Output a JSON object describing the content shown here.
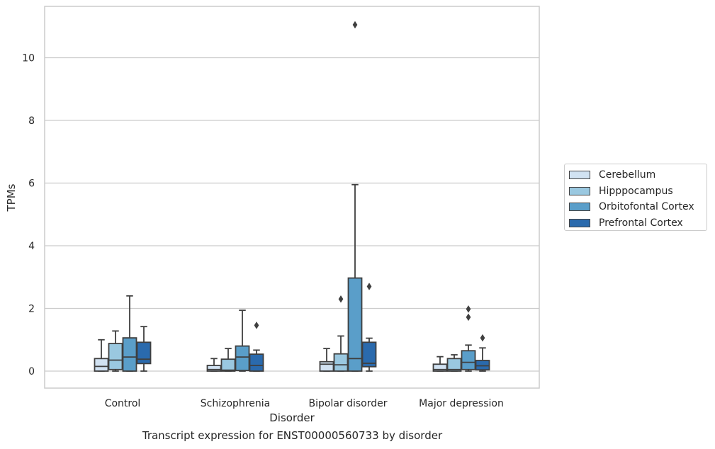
{
  "caption": "Transcript expression for ENST00000560733 by disorder",
  "chart_data": {
    "type": "box",
    "xlabel": "Disorder",
    "ylabel": "TPMs",
    "ylim": [
      -0.52,
      11.65
    ],
    "yticks": [
      0,
      2,
      4,
      6,
      8,
      10
    ],
    "grid": true,
    "legend_position": "right",
    "categories": [
      "Control",
      "Schizophrenia",
      "Bipolar disorder",
      "Major depression"
    ],
    "series": [
      {
        "name": "Cerebellum",
        "color": "#d1e2f2",
        "boxes": [
          {
            "whisker_low": 0,
            "q1": 0,
            "median": 0.15,
            "q3": 0.4,
            "whisker_high": 1.0,
            "outliers": []
          },
          {
            "whisker_low": 0,
            "q1": 0,
            "median": 0.05,
            "q3": 0.18,
            "whisker_high": 0.4,
            "outliers": []
          },
          {
            "whisker_low": 0,
            "q1": 0,
            "median": 0.22,
            "q3": 0.3,
            "whisker_high": 0.72,
            "outliers": []
          },
          {
            "whisker_low": 0,
            "q1": 0,
            "median": 0.05,
            "q3": 0.22,
            "whisker_high": 0.46,
            "outliers": []
          }
        ]
      },
      {
        "name": "Hipppocampus",
        "color": "#9ac8e0",
        "boxes": [
          {
            "whisker_low": 0,
            "q1": 0.05,
            "median": 0.35,
            "q3": 0.88,
            "whisker_high": 1.28,
            "outliers": []
          },
          {
            "whisker_low": 0,
            "q1": 0,
            "median": 0.03,
            "q3": 0.38,
            "whisker_high": 0.72,
            "outliers": []
          },
          {
            "whisker_low": 0,
            "q1": 0,
            "median": 0.2,
            "q3": 0.55,
            "whisker_high": 1.12,
            "outliers": [
              2.3
            ]
          },
          {
            "whisker_low": 0,
            "q1": 0,
            "median": 0.05,
            "q3": 0.4,
            "whisker_high": 0.52,
            "outliers": []
          }
        ]
      },
      {
        "name": "Orbitofontal Cortex",
        "color": "#5a9ec9",
        "boxes": [
          {
            "whisker_low": 0,
            "q1": 0,
            "median": 0.45,
            "q3": 1.06,
            "whisker_high": 2.4,
            "outliers": []
          },
          {
            "whisker_low": 0,
            "q1": 0.02,
            "median": 0.45,
            "q3": 0.8,
            "whisker_high": 1.94,
            "outliers": []
          },
          {
            "whisker_low": 0,
            "q1": 0,
            "median": 0.4,
            "q3": 2.97,
            "whisker_high": 5.95,
            "outliers": [
              11.05
            ]
          },
          {
            "whisker_low": 0,
            "q1": 0.05,
            "median": 0.28,
            "q3": 0.65,
            "whisker_high": 0.83,
            "outliers": [
              1.98,
              1.72
            ]
          }
        ]
      },
      {
        "name": "Prefrontal Cortex",
        "color": "#2a6aad",
        "boxes": [
          {
            "whisker_low": 0,
            "q1": 0.24,
            "median": 0.38,
            "q3": 0.92,
            "whisker_high": 1.42,
            "outliers": []
          },
          {
            "whisker_low": 0,
            "q1": 0,
            "median": 0.18,
            "q3": 0.54,
            "whisker_high": 0.67,
            "outliers": [
              1.46
            ]
          },
          {
            "whisker_low": 0,
            "q1": 0.14,
            "median": 0.25,
            "q3": 0.92,
            "whisker_high": 1.05,
            "outliers": [
              2.7
            ]
          },
          {
            "whisker_low": 0,
            "q1": 0.04,
            "median": 0.17,
            "q3": 0.34,
            "whisker_high": 0.74,
            "outliers": [
              1.06
            ]
          }
        ]
      }
    ]
  }
}
